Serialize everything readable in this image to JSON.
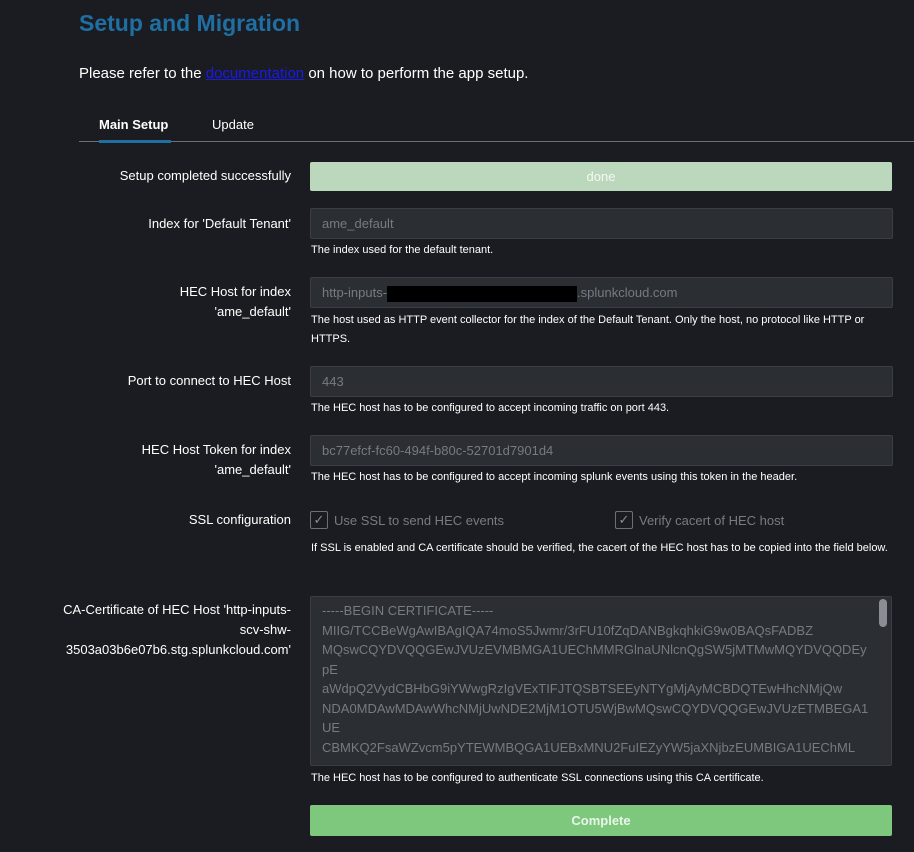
{
  "page": {
    "title": "Setup and Migration",
    "intro_before": "Please refer to the ",
    "intro_link": "documentation",
    "intro_after": " on how to perform the app setup."
  },
  "tabs": [
    {
      "label": "Main Setup",
      "active": true
    },
    {
      "label": "Update",
      "active": false
    }
  ],
  "form": {
    "status": {
      "label": "Setup completed successfully",
      "value": "done"
    },
    "index": {
      "label": "Index for 'Default Tenant'",
      "value": "ame_default",
      "help": "The index used for the default tenant."
    },
    "hec_host": {
      "label_1": "HEC Host for index",
      "label_2": "'ame_default'",
      "value_prefix": "http-inputs-",
      "value_suffix": ".splunkcloud.com",
      "help": "The host used as HTTP event collector for the index of the Default Tenant. Only the host, no protocol like HTTP or HTTPS."
    },
    "port": {
      "label": "Port to connect to HEC Host",
      "value": "443",
      "help": "The HEC host has to be configured to accept incoming traffic on port 443."
    },
    "token": {
      "label_1": "HEC Host Token for index",
      "label_2": "'ame_default'",
      "value": "bc77efcf-fc60-494f-b80c-52701d7901d4",
      "help": "The HEC host has to be configured to accept incoming splunk events using this token in the header."
    },
    "ssl": {
      "label": "SSL configuration",
      "use_ssl": {
        "label": "Use SSL to send HEC events",
        "checked": true
      },
      "verify": {
        "label": "Verify cacert of HEC host",
        "checked": true
      },
      "help": "If SSL is enabled and CA certificate should be verified, the cacert of the HEC host has to be copied into the field below."
    },
    "cacert": {
      "label_1": "CA-Certificate of HEC Host 'http-inputs-",
      "label_2": "scv-shw-",
      "label_3": "3503a03b6e07b6.stg.splunkcloud.com'",
      "lines": [
        "-----BEGIN CERTIFICATE-----",
        "MIIG/TCCBeWgAwIBAgIQA74moS5Jwmr/3rFU10fZqDANBgkqhkiG9w0BAQsFADBZ",
        "MQswCQYDVQQGEwJVUzEVMBMGA1UEChMMRGlnaUNlcnQgSW5jMTMwMQYDVQQDEypE",
        "aWdpQ2VydCBHbG9iYWwgRzIgVExTIFJTQSBTSEEyNTYgMjAyMCBDQTEwHhcNMjQw",
        "NDA0MDAwMDAwWhcNMjUwNDE2MjM1OTU5WjBwMQswCQYDVQQGEwJVUzETMBEGA1UE",
        "CBMKQ2FsaWZvcm5pYTEWMBQGA1UEBxMNU2FuIEZyYW5jaXNjbzEUMBIGA1UEChML"
      ],
      "help": "The HEC host has to be configured to authenticate SSL connections using this CA certificate."
    },
    "submit": "Complete"
  },
  "colors": {
    "accent": "#1f6fa3",
    "done": "#bcd8bc",
    "complete": "#7dc87d"
  }
}
